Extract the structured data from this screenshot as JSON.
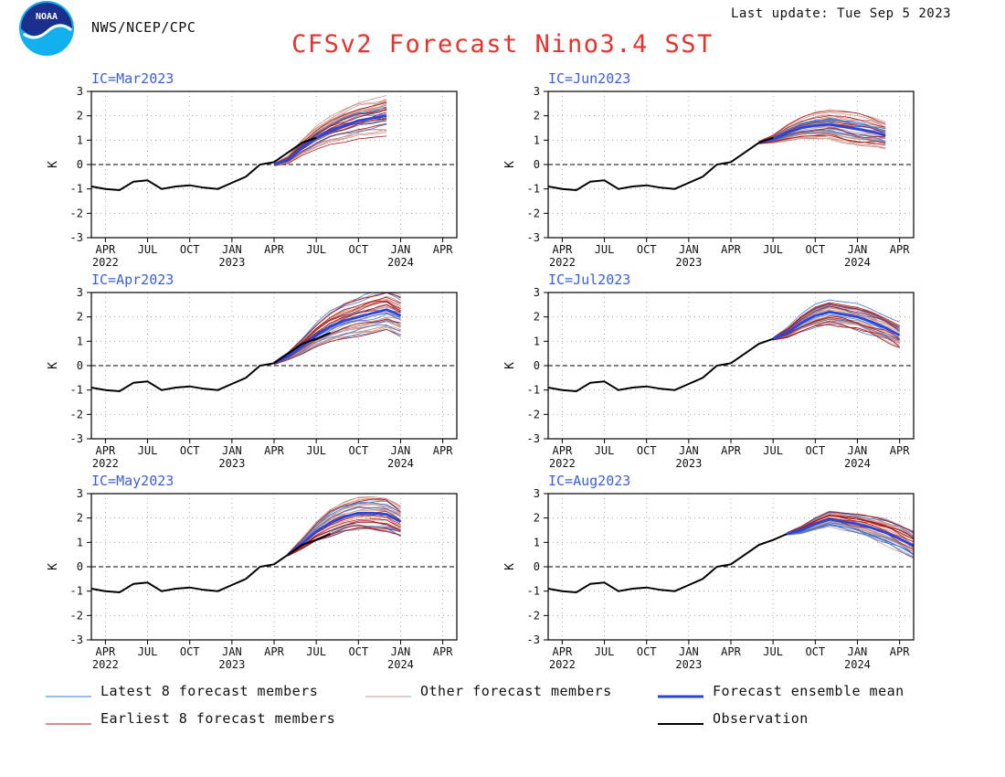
{
  "header": {
    "agency": "NWS/NCEP/CPC",
    "last_update": "Last update: Tue Sep 5 2023",
    "title": "CFSv2 Forecast Nino3.4 SST",
    "logo_text": "NOAA"
  },
  "colors": {
    "title": "#e8322d",
    "ic_label": "#3a5fd8",
    "latest_members": "#3a78d6",
    "earliest_members": "#b01a16",
    "other_members": "#c9958a",
    "ensemble_mean": "#2646e0",
    "observation": "#000000"
  },
  "legend": {
    "latest": "Latest 8 forecast members",
    "other": "Other forecast members",
    "mean": "Forecast ensemble mean",
    "earliest": "Earliest 8 forecast members",
    "obs": "Observation"
  },
  "chart_data": {
    "type": "line",
    "ylabel": "K",
    "ylim": [
      -3,
      3
    ],
    "yticks": [
      3,
      2,
      1,
      0,
      -1,
      -2,
      -3
    ],
    "xlim": [
      "2022-03",
      "2024-05"
    ],
    "xticks": [
      {
        "date": "2022-04",
        "month": "APR",
        "year": "2022"
      },
      {
        "date": "2022-07",
        "month": "JUL",
        "year": ""
      },
      {
        "date": "2022-10",
        "month": "OCT",
        "year": ""
      },
      {
        "date": "2023-01",
        "month": "JAN",
        "year": "2023"
      },
      {
        "date": "2023-04",
        "month": "APR",
        "year": ""
      },
      {
        "date": "2023-07",
        "month": "JUL",
        "year": ""
      },
      {
        "date": "2023-10",
        "month": "OCT",
        "year": ""
      },
      {
        "date": "2024-01",
        "month": "JAN",
        "year": "2024"
      },
      {
        "date": "2024-04",
        "month": "APR",
        "year": ""
      }
    ],
    "observation": {
      "name": "Observation",
      "x": [
        "2022-03",
        "2022-04",
        "2022-05",
        "2022-06",
        "2022-07",
        "2022-08",
        "2022-09",
        "2022-10",
        "2022-11",
        "2022-12",
        "2023-01",
        "2023-02",
        "2023-03",
        "2023-04",
        "2023-05",
        "2023-06",
        "2023-07",
        "2023-08"
      ],
      "values": [
        -0.9,
        -1.0,
        -1.05,
        -0.7,
        -0.65,
        -1.0,
        -0.9,
        -0.85,
        -0.95,
        -1.0,
        -0.75,
        -0.5,
        0.0,
        0.1,
        0.5,
        0.9,
        1.1,
        1.35
      ]
    },
    "panels": [
      {
        "ic": "IC=Mar2023",
        "start": "2023-04",
        "obs_until": "2023-07",
        "mean_x": [
          "2023-04",
          "2023-05",
          "2023-06",
          "2023-07",
          "2023-08",
          "2023-09",
          "2023-10",
          "2023-11",
          "2023-12"
        ],
        "mean": [
          0.0,
          0.2,
          0.7,
          1.1,
          1.4,
          1.6,
          1.8,
          1.9,
          2.0
        ],
        "spread": [
          0.05,
          0.15,
          0.3,
          0.45,
          0.55,
          0.65,
          0.7,
          0.75,
          0.8
        ]
      },
      {
        "ic": "IC=Jun2023",
        "start": "2023-06",
        "obs_until": "2023-07",
        "mean_x": [
          "2023-06",
          "2023-07",
          "2023-08",
          "2023-09",
          "2023-10",
          "2023-11",
          "2023-12",
          "2024-01",
          "2024-02",
          "2024-03"
        ],
        "mean": [
          0.9,
          1.05,
          1.3,
          1.5,
          1.6,
          1.65,
          1.55,
          1.45,
          1.35,
          1.2
        ],
        "spread": [
          0.05,
          0.15,
          0.3,
          0.4,
          0.5,
          0.55,
          0.6,
          0.6,
          0.55,
          0.5
        ]
      },
      {
        "ic": "IC=Apr2023",
        "start": "2023-04",
        "obs_until": "2023-08",
        "mean_x": [
          "2023-04",
          "2023-05",
          "2023-06",
          "2023-07",
          "2023-08",
          "2023-09",
          "2023-10",
          "2023-11",
          "2023-12",
          "2024-01"
        ],
        "mean": [
          0.1,
          0.4,
          0.8,
          1.25,
          1.6,
          1.85,
          2.0,
          2.15,
          2.3,
          2.05
        ],
        "spread": [
          0.05,
          0.15,
          0.3,
          0.45,
          0.6,
          0.7,
          0.75,
          0.8,
          0.8,
          0.8
        ]
      },
      {
        "ic": "IC=Jul2023",
        "start": "2023-07",
        "obs_until": "2023-07",
        "mean_x": [
          "2023-07",
          "2023-08",
          "2023-09",
          "2023-10",
          "2023-11",
          "2023-12",
          "2024-01",
          "2024-02",
          "2024-03",
          "2024-04"
        ],
        "mean": [
          1.1,
          1.35,
          1.75,
          2.05,
          2.2,
          2.1,
          2.0,
          1.8,
          1.55,
          1.25
        ],
        "spread": [
          0.05,
          0.2,
          0.35,
          0.45,
          0.5,
          0.5,
          0.5,
          0.5,
          0.5,
          0.5
        ]
      },
      {
        "ic": "IC=May2023",
        "start": "2023-05",
        "obs_until": "2023-08",
        "mean_x": [
          "2023-05",
          "2023-06",
          "2023-07",
          "2023-08",
          "2023-09",
          "2023-10",
          "2023-11",
          "2023-12",
          "2024-01"
        ],
        "mean": [
          0.5,
          0.95,
          1.45,
          1.8,
          2.05,
          2.2,
          2.2,
          2.15,
          1.85
        ],
        "spread": [
          0.05,
          0.2,
          0.35,
          0.5,
          0.55,
          0.6,
          0.6,
          0.6,
          0.55
        ]
      },
      {
        "ic": "IC=Aug2023",
        "start": "2023-08",
        "obs_until": "2023-08",
        "mean_x": [
          "2023-08",
          "2023-09",
          "2023-10",
          "2023-11",
          "2023-12",
          "2024-01",
          "2024-02",
          "2024-03",
          "2024-04",
          "2024-05"
        ],
        "mean": [
          1.35,
          1.5,
          1.75,
          1.95,
          1.85,
          1.75,
          1.6,
          1.4,
          1.15,
          0.85
        ],
        "spread": [
          0.05,
          0.15,
          0.25,
          0.3,
          0.35,
          0.4,
          0.45,
          0.5,
          0.55,
          0.55
        ]
      }
    ]
  }
}
